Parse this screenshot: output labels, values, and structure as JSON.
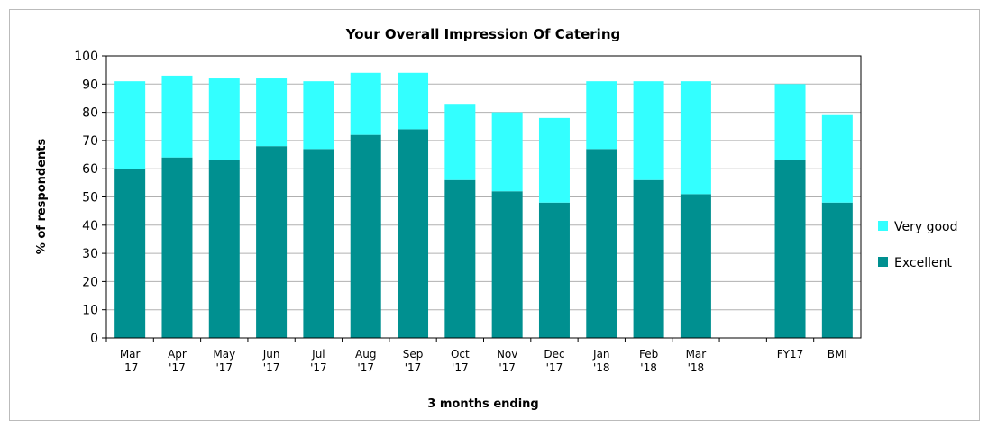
{
  "chart_data": {
    "type": "bar",
    "stacked": true,
    "title": "Your Overall Impression Of Catering",
    "x_label": "3 months ending",
    "y_label": "% of respondents",
    "categories": [
      "Mar '17",
      "Apr '17",
      "May '17",
      "Jun '17",
      "Jul '17",
      "Aug '17",
      "Sep '17",
      "Oct '17",
      "Nov '17",
      "Dec '17",
      "Jan '18",
      "Feb '18",
      "Mar '18",
      null,
      "FY17",
      "BMI"
    ],
    "series": [
      {
        "name": "Excellent",
        "color": "#009090",
        "values": [
          60,
          64,
          63,
          68,
          67,
          72,
          74,
          56,
          52,
          48,
          67,
          56,
          51,
          null,
          63,
          48
        ]
      },
      {
        "name": "Very good",
        "color": "#33ffff",
        "values": [
          31,
          29,
          29,
          24,
          24,
          22,
          20,
          27,
          28,
          30,
          24,
          35,
          40,
          null,
          27,
          31
        ]
      }
    ],
    "ylim": [
      0,
      100
    ],
    "yticks": [
      0,
      10,
      20,
      30,
      40,
      50,
      60,
      70,
      80,
      90,
      100
    ],
    "grid": true,
    "legend": "right"
  }
}
